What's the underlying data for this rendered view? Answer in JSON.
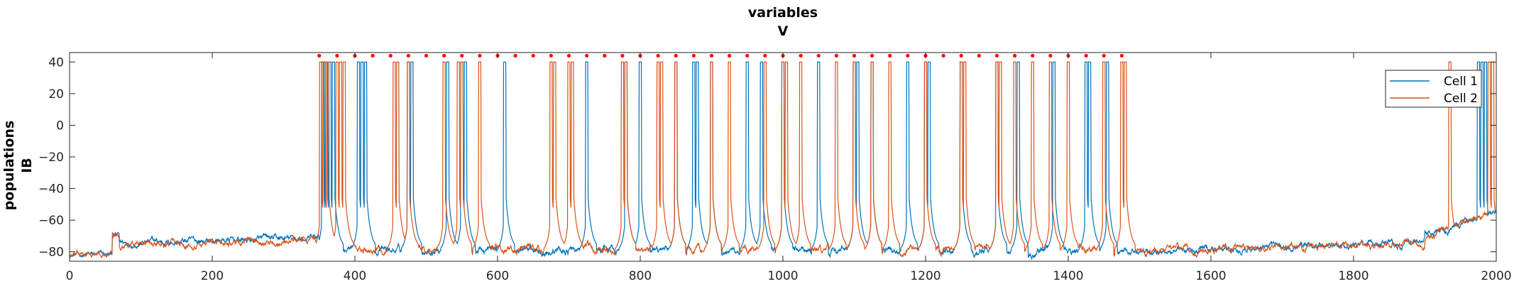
{
  "chart_data": {
    "type": "line",
    "title_lines": [
      "variables",
      "V"
    ],
    "ylabel_lines": [
      "populations",
      "IB"
    ],
    "xlim": [
      0,
      2000
    ],
    "ylim": [
      -86,
      46
    ],
    "xticks": [
      0,
      200,
      400,
      600,
      800,
      1000,
      1200,
      1400,
      1600,
      1800,
      2000
    ],
    "yticks": [
      -80,
      -60,
      -40,
      -20,
      0,
      20,
      40
    ],
    "grid": false,
    "legend": {
      "placement": "top-right",
      "entries": [
        "Cell 1",
        "Cell 2"
      ]
    },
    "series": [
      {
        "name": "Cell 1",
        "color": "#0072bd",
        "baseline_up": -73,
        "baseline_down": -79,
        "burst_start": 350,
        "burst_end": 1480,
        "rest_after": -80,
        "spikes": [
          355,
          360,
          365,
          370,
          405,
          410,
          415,
          475,
          480,
          530,
          550,
          555,
          610,
          725,
          780,
          800,
          850,
          875,
          880,
          900,
          950,
          970,
          1000,
          1050,
          1100,
          1105,
          1125,
          1175,
          1200,
          1205,
          1250,
          1300,
          1330,
          1380,
          1425,
          1430,
          1455,
          1975,
          1980,
          1985
        ]
      },
      {
        "name": "Cell 2",
        "color": "#d95319",
        "baseline_up": -74,
        "baseline_down": -79,
        "burst_start": 350,
        "burst_end": 1480,
        "rest_after": -80,
        "spikes": [
          352,
          357,
          362,
          375,
          380,
          385,
          455,
          460,
          475,
          525,
          545,
          550,
          575,
          675,
          680,
          700,
          705,
          775,
          780,
          825,
          830,
          850,
          900,
          925,
          975,
          1000,
          1005,
          1025,
          1075,
          1100,
          1125,
          1150,
          1200,
          1250,
          1255,
          1300,
          1305,
          1325,
          1350,
          1375,
          1400,
          1450,
          1475,
          1480,
          1935,
          1990,
          1995
        ]
      }
    ],
    "markers": {
      "color": "#ff0000",
      "y": 44,
      "x": [
        350,
        375,
        400,
        425,
        450,
        475,
        500,
        525,
        550,
        575,
        600,
        625,
        650,
        675,
        700,
        725,
        750,
        775,
        800,
        825,
        850,
        875,
        900,
        925,
        950,
        975,
        1000,
        1025,
        1050,
        1075,
        1100,
        1125,
        1150,
        1175,
        1200,
        1225,
        1250,
        1275,
        1300,
        1325,
        1350,
        1375,
        1400,
        1425,
        1450,
        1475
      ]
    }
  }
}
